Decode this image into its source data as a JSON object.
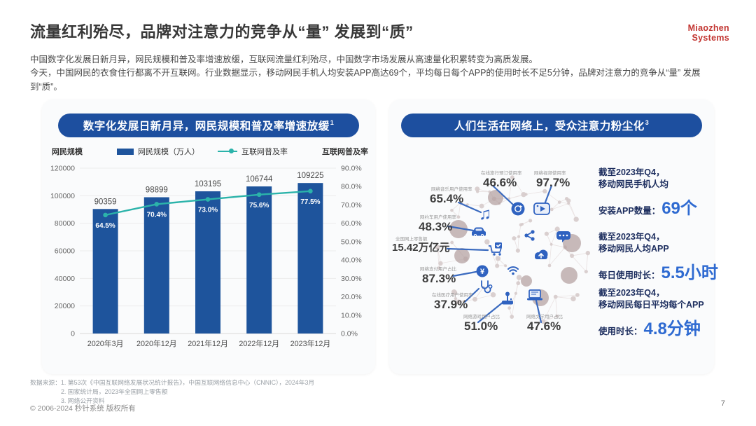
{
  "page": {
    "title": "流量红利殆尽，品牌对注意力的竞争从“量” 发展到“质”",
    "intro": [
      "中国数字化发展日新月异，网民规模和普及率增速放缓，互联网流量红利殆尽，中国数字市场发展从高速量化积累转变为高质发展。",
      "今天，中国网民的衣食住行都离不开互联网。行业数据显示，移动网民手机人均安装APP高达69个，平均每日每个APP的使用时长不足5分钟，品牌对注意力的竞争从“量” 发展到“质”。"
    ],
    "logo": {
      "line1": "Miaozhen",
      "line2": "Systems",
      "color": "#c23531"
    },
    "copyright": "© 2006-2024 秒针系统 版权所有",
    "page_number": "7"
  },
  "left_panel": {
    "header": "数字化发展日新月异，网民规模和普及率增速放缓",
    "header_superscript": "1"
  },
  "chart_data": {
    "type": "bar",
    "title": "数字化发展日新月异，网民规模和普及率增速放缓",
    "categories": [
      "2020年3月",
      "2020年12月",
      "2021年12月",
      "2022年12月",
      "2023年12月"
    ],
    "series": [
      {
        "name": "网民规模（万人）",
        "type": "bar",
        "axis": "left",
        "values": [
          90359,
          98899,
          103195,
          106744,
          109225
        ],
        "color": "#1e549c"
      },
      {
        "name": "互联网普及率",
        "type": "line",
        "axis": "right",
        "values": [
          64.5,
          70.4,
          73.0,
          75.6,
          77.5
        ],
        "labels": [
          "64.5%",
          "70.4%",
          "73.0%",
          "75.6%",
          "77.5%"
        ],
        "color": "#2bb3aa"
      }
    ],
    "left_axis": {
      "title": "网民规模",
      "min": 0,
      "max": 120000,
      "step": 20000
    },
    "right_axis": {
      "title": "互联网普及率",
      "min": 0,
      "max": 90,
      "step": 10,
      "suffix": "%"
    },
    "grid": true,
    "legend_position": "top"
  },
  "right_panel": {
    "header": "人们生活在网络上，受众注意力粉尘化",
    "header_superscript": "3",
    "callouts": [
      {
        "icon": "music",
        "label": "网络音乐用户使用率",
        "value": "65.4%"
      },
      {
        "icon": "travel",
        "label": "在线旅行预订使用率",
        "value": "46.6%"
      },
      {
        "icon": "video",
        "label": "网络视频使用率",
        "value": "97.7%"
      },
      {
        "icon": "car",
        "label": "网约车用户使用率",
        "value": "48.3%"
      },
      {
        "icon": "cart",
        "label": "全国网上零售额",
        "value": "15.42万亿元"
      },
      {
        "icon": "payment",
        "label": "网络支付用户占比",
        "value": "87.3%"
      },
      {
        "icon": "medical",
        "label": "在线医疗用户使用率",
        "value": "37.9%"
      },
      {
        "icon": "game",
        "label": "网络游戏用户占比",
        "value": "51.0%"
      },
      {
        "icon": "laptop",
        "label": "网络文学用户占比",
        "value": "47.6%"
      }
    ],
    "stats": [
      {
        "prefix": "截至2023年Q4，",
        "desc": "移动网民手机人均",
        "label": "安装APP数量：",
        "value": "69个"
      },
      {
        "prefix": "截至2023年Q4，",
        "desc": "移动网民人均APP",
        "label": "每日使用时长：",
        "value": "5.5小时"
      },
      {
        "prefix": "截至2023年Q4，",
        "desc": "移动网民每日平均每个APP",
        "label": "使用时长：",
        "value": "4.8分钟"
      }
    ],
    "colors": {
      "icon_blue": "#2f62c0",
      "leader_line": "#3a6abf",
      "taupe": "#b3a0a0",
      "mesh_node": "#d6cbcb"
    }
  },
  "sources": {
    "label": "数据来源：",
    "items": [
      "1. 第53次《中国互联网络发展状况统计报告》，中国互联网络信息中心（CNNIC），2024年3月",
      "2. 国家统计局，2023年全国网上零售额",
      "3. 网络公开资料"
    ]
  }
}
